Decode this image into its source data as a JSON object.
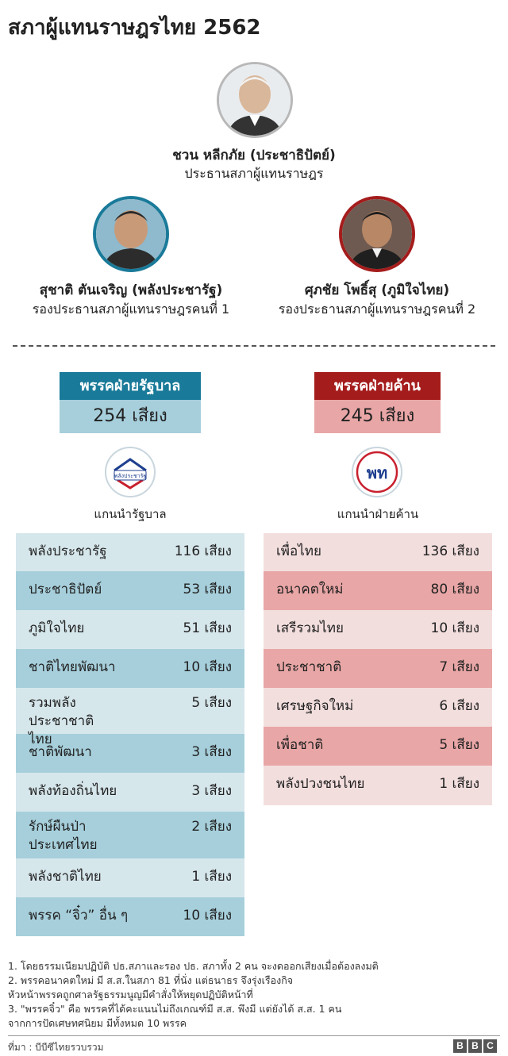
{
  "title": "สภาผู้แทนราษฎรไทย 2562",
  "speaker": {
    "name": "ชวน หลีกภัย (ประชาธิปัตย์)",
    "role": "ประธานสภาผู้แทนราษฎร"
  },
  "deputy1": {
    "name": "สุชาติ ตันเจริญ (พลังประชารัฐ)",
    "role": "รองประธานสภาผู้แทนราษฎรคนที่ 1"
  },
  "deputy2": {
    "name": "ศุภชัย โพธิ์สุ (ภูมิใจไทย)",
    "role": "รองประธานสภาผู้แทนราษฎรคนที่ 2"
  },
  "government": {
    "label": "พรรคฝ่ายรัฐบาล",
    "seats": "254 เสียง",
    "logo_text": "พลังประชารัฐ",
    "leader_label": "แกนนำรัฐบาล",
    "color": "#1a7a99",
    "parties": [
      {
        "name": "พลังประชารัฐ",
        "seats": "116 เสียง"
      },
      {
        "name": "ประชาธิปัตย์",
        "seats": "53 เสียง"
      },
      {
        "name": "ภูมิใจไทย",
        "seats": "51 เสียง"
      },
      {
        "name": "ชาติไทยพัฒนา",
        "seats": "10 เสียง"
      },
      {
        "name": "รวมพลังประชาชาติไทย",
        "seats": "5 เสียง"
      },
      {
        "name": "ชาติพัฒนา",
        "seats": "3 เสียง"
      },
      {
        "name": "พลังท้องถิ่นไทย",
        "seats": "3 เสียง"
      },
      {
        "name": "รักษ์ผืนป่าประเทศไทย",
        "seats": "2 เสียง"
      },
      {
        "name": "พลังชาติไทย",
        "seats": "1 เสียง"
      },
      {
        "name": "พรรค “จิ๋ว” อื่น ๆ",
        "seats": "10 เสียง"
      }
    ]
  },
  "opposition": {
    "label": "พรรคฝ่ายค้าน",
    "seats": "245 เสียง",
    "logo_text": "พท",
    "leader_label": "แกนนำฝ่ายค้าน",
    "color": "#a51c1c",
    "parties": [
      {
        "name": "เพื่อไทย",
        "seats": "136 เสียง"
      },
      {
        "name": "อนาคตใหม่",
        "seats": "80 เสียง"
      },
      {
        "name": "เสรีรวมไทย",
        "seats": "10 เสียง"
      },
      {
        "name": "ประชาชาติ",
        "seats": "7 เสียง"
      },
      {
        "name": "เศรษฐกิจใหม่",
        "seats": "6 เสียง"
      },
      {
        "name": "เพื่อชาติ",
        "seats": "5 เสียง"
      },
      {
        "name": "พลังปวงชนไทย",
        "seats": "1 เสียง"
      }
    ]
  },
  "notes": [
    "1. โดยธรรมเนียมปฏิบัติ ปธ.สภาและรอง ปธ. สภาทั้ง 2 คน จะงดออกเสียงเมื่อต้องลงมติ",
    "2. พรรคอนาคตใหม่ มี ส.ส.ในสภา 81 ที่นั่ง แต่ธนาธร จึงรุ่งเรืองกิจ",
    "หัวหน้าพรรคถูกศาลรัฐธรรมนูญมีคำสั่งให้หยุดปฏิบัติหน้าที่",
    "3. \"พรรคจิ๋ว\" คือ พรรคที่ได้คะแนนไม่ถึงเกณฑ์มี ส.ส. พึงมี แต่ยังได้ ส.ส. 1 คน",
    "จากการปัดเศษทศนิยม มีทั้งหมด 10 พรรค"
  ],
  "source": "ที่มา : บีบีซีไทยรวบรวม",
  "brand": [
    "B",
    "B",
    "C"
  ]
}
